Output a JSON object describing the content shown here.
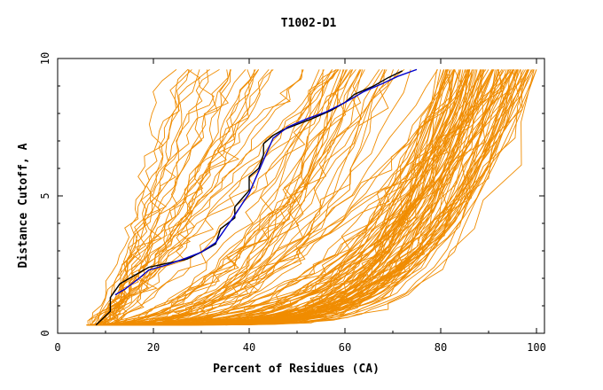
{
  "chart_data": {
    "type": "line",
    "title": "T1002-D1",
    "xlabel": "Percent of Residues (CA)",
    "ylabel": "Distance Cutoff, A",
    "xlim": [
      0,
      100
    ],
    "ylim": [
      0,
      10
    ],
    "xticks": [
      0,
      20,
      40,
      60,
      80,
      100
    ],
    "yticks": [
      0,
      5,
      10
    ],
    "grid": false,
    "colors": {
      "background_series": "#f08c00",
      "highlight_black": "#000000",
      "highlight_blue": "#0000cc"
    },
    "highlight_series": [
      {
        "name": "black",
        "x": [
          8,
          11,
          11,
          13,
          16,
          19,
          23,
          27,
          30,
          33,
          34,
          37,
          37,
          39,
          40,
          40,
          42,
          43,
          43,
          45,
          47,
          50,
          53,
          57,
          60,
          62,
          66,
          69,
          72
        ],
        "y": [
          0.3,
          0.8,
          1.3,
          1.8,
          2.1,
          2.4,
          2.55,
          2.7,
          2.95,
          3.25,
          3.8,
          4.2,
          4.6,
          5.0,
          5.2,
          5.7,
          6.0,
          6.5,
          6.9,
          7.2,
          7.4,
          7.6,
          7.8,
          8.1,
          8.4,
          8.7,
          9.0,
          9.3,
          9.55
        ]
      },
      {
        "name": "blue",
        "x": [
          12,
          14,
          17,
          19,
          23,
          27,
          30,
          33,
          37,
          40,
          43,
          45,
          48,
          52,
          56,
          60,
          64,
          68,
          71,
          75
        ],
        "y": [
          1.4,
          1.6,
          2.0,
          2.3,
          2.5,
          2.75,
          2.95,
          3.3,
          4.3,
          5.1,
          6.3,
          7.1,
          7.5,
          7.8,
          8.05,
          8.4,
          8.8,
          9.1,
          9.35,
          9.6
        ]
      }
    ],
    "background_series_count": 160
  }
}
